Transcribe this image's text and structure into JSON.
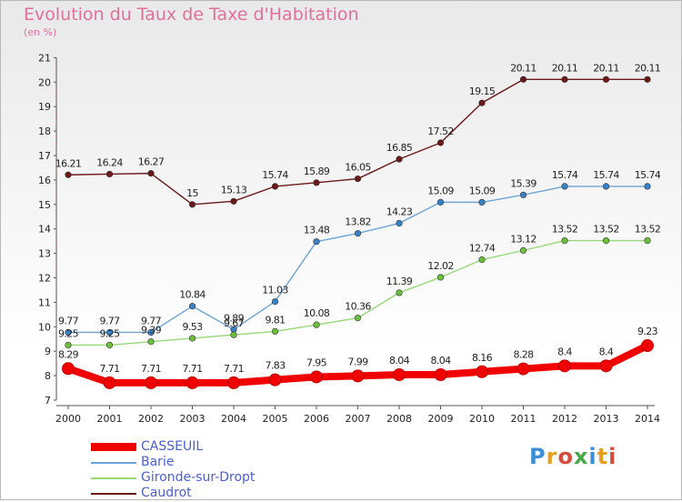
{
  "title": "Evolution du Taux de Taxe d'Habitation",
  "unit_label": "(en %)",
  "logo": {
    "letters": [
      "P",
      "r",
      "o",
      "x",
      "i",
      "t",
      "i"
    ],
    "colors": [
      "#3a8fd8",
      "#e8a020",
      "#d84a3a",
      "#48a848",
      "#3a8fd8",
      "#e8a020",
      "#d84a3a"
    ]
  },
  "chart_data": {
    "type": "line",
    "x": [
      "2000",
      "2001",
      "2002",
      "2003",
      "2004",
      "2005",
      "2006",
      "2007",
      "2008",
      "2009",
      "2010",
      "2011",
      "2012",
      "2013",
      "2014"
    ],
    "ylim": [
      7,
      21
    ],
    "yticks": [
      "7",
      "8",
      "9",
      "10",
      "11",
      "12",
      "13",
      "14",
      "15",
      "16",
      "17",
      "18",
      "19",
      "20",
      "21"
    ],
    "grid": false,
    "legend_position": "bottom-left",
    "series": [
      {
        "name": "Caudrot",
        "color": "#6b1818",
        "marker": "#6b1818",
        "values": [
          16.21,
          16.24,
          16.27,
          15,
          15.13,
          15.74,
          15.89,
          16.05,
          16.85,
          17.52,
          19.15,
          20.11,
          20.11,
          20.11,
          20.11
        ],
        "labels": [
          "16.21",
          "16.24",
          "16.27",
          "15",
          "15.13",
          "15.74",
          "15.89",
          "16.05",
          "16.85",
          "17.52",
          "19.15",
          "20.11",
          "20.11",
          "20.11",
          "20.11"
        ]
      },
      {
        "name": "Barie",
        "color": "#6ea4d4",
        "marker": "#3a82c8",
        "values": [
          9.77,
          9.77,
          9.77,
          10.84,
          9.89,
          11.03,
          13.48,
          13.82,
          14.23,
          15.09,
          15.09,
          15.39,
          15.74,
          15.74,
          15.74
        ],
        "labels": [
          "9.77",
          "9.77",
          "9.77",
          "10.84",
          "9.89",
          "11.03",
          "13.48",
          "13.82",
          "14.23",
          "15.09",
          "15.09",
          "15.39",
          "15.74",
          "15.74",
          "15.74"
        ]
      },
      {
        "name": "Gironde-sur-Dropt",
        "color": "#98d878",
        "marker": "#6cc040",
        "values": [
          9.25,
          9.25,
          9.39,
          9.53,
          9.67,
          9.81,
          10.08,
          10.36,
          11.39,
          12.02,
          12.74,
          13.12,
          13.52,
          13.52,
          13.52
        ],
        "labels": [
          "9.25",
          "9.25",
          "9.39",
          "9.53",
          "9.67",
          "9.81",
          "10.08",
          "10.36",
          "11.39",
          "12.02",
          "12.74",
          "13.12",
          "13.52",
          "13.52",
          "13.52"
        ]
      },
      {
        "name": "CASSEUIL",
        "color": "#f00000",
        "marker": "#f00000",
        "values": [
          8.29,
          7.71,
          7.71,
          7.71,
          7.71,
          7.83,
          7.95,
          7.99,
          8.04,
          8.04,
          8.16,
          8.28,
          8.4,
          8.4,
          9.23
        ],
        "labels": [
          "8.29",
          "7.71",
          "7.71",
          "7.71",
          "7.71",
          "7.83",
          "7.95",
          "7.99",
          "8.04",
          "8.04",
          "8.16",
          "8.28",
          "8.4",
          "8.4",
          "9.23"
        ]
      }
    ],
    "legend": [
      "CASSEUIL",
      "Barie",
      "Gironde-sur-Dropt",
      "Caudrot"
    ]
  }
}
